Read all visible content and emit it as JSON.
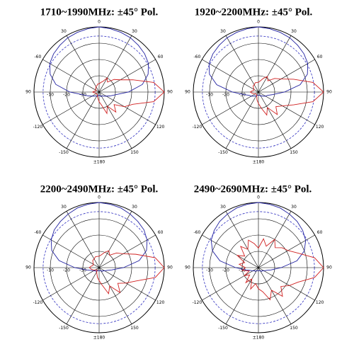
{
  "chart_data": [
    {
      "type": "polar",
      "title": "1710~1990MHz: ±45° Pol.",
      "x": [
        0,
        10,
        20,
        30,
        40,
        50,
        60,
        70,
        80,
        90,
        100,
        110,
        120,
        130,
        140,
        150,
        160,
        170,
        180,
        190,
        200,
        210,
        220,
        230,
        240,
        250,
        260,
        270,
        280,
        290,
        300,
        310,
        320,
        330,
        340,
        350
      ],
      "xticks": [
        0,
        {
          "value": 30,
          "label": "30"
        },
        60,
        90,
        120,
        150,
        {
          "value": 180,
          "label": "±180"
        },
        {
          "value": -150,
          "label": "-150"
        },
        {
          "value": -120,
          "label": "-120"
        },
        {
          "value": -90,
          "label": "90"
        },
        {
          "value": -60,
          "label": "-60"
        },
        {
          "value": -30,
          "label": "30"
        }
      ],
      "ylim": [
        -40,
        0
      ],
      "yticks": [
        -10,
        -20,
        -30
      ],
      "series": [
        {
          "color": "#2020a0",
          "values": [
            0,
            -0.5,
            -1,
            -1.5,
            -2.5,
            -3.5,
            -5,
            -8,
            -13,
            -22,
            -30,
            -33,
            -35,
            -36,
            -37,
            -37,
            -37,
            -38,
            -38,
            -38,
            -37,
            -37,
            -37,
            -36,
            -35,
            -33,
            -30,
            -22,
            -13,
            -8,
            -5,
            -3.5,
            -2.5,
            -1.5,
            -1,
            -0.5
          ]
        },
        {
          "color": "#d02020",
          "values": [
            -35,
            -34,
            -33,
            -30,
            -32,
            -28,
            -25,
            -18,
            -6,
            0,
            -6,
            -18,
            -22,
            -28,
            -24,
            -30,
            -26,
            -32,
            -34,
            -36,
            -37,
            -38,
            -38,
            -38,
            -38,
            -38,
            -37,
            -36,
            -37,
            -38,
            -38,
            -37,
            -37,
            -36,
            -36,
            -35
          ]
        }
      ]
    },
    {
      "type": "polar",
      "title": "1920~2200MHz: ±45° Pol.",
      "x": [
        0,
        10,
        20,
        30,
        40,
        50,
        60,
        70,
        80,
        90,
        100,
        110,
        120,
        130,
        140,
        150,
        160,
        170,
        180,
        190,
        200,
        210,
        220,
        230,
        240,
        250,
        260,
        270,
        280,
        290,
        300,
        310,
        320,
        330,
        340,
        350
      ],
      "xticks": [
        0,
        {
          "value": 30,
          "label": "30"
        },
        60,
        90,
        120,
        150,
        {
          "value": 180,
          "label": "±180"
        },
        {
          "value": -150,
          "label": "-150"
        },
        {
          "value": -120,
          "label": "-120"
        },
        {
          "value": -90,
          "label": "90"
        },
        {
          "value": -60,
          "label": "-60"
        },
        {
          "value": -30,
          "label": "30"
        }
      ],
      "ylim": [
        -40,
        0
      ],
      "yticks": [
        -10,
        -20,
        -30
      ],
      "series": [
        {
          "color": "#2020a0",
          "values": [
            0,
            -0.5,
            -1,
            -1.5,
            -2.5,
            -3.5,
            -5,
            -8,
            -14,
            -24,
            -31,
            -34,
            -35,
            -36,
            -37,
            -37,
            -38,
            -38,
            -38,
            -38,
            -38,
            -37,
            -37,
            -36,
            -35,
            -34,
            -31,
            -24,
            -14,
            -8,
            -5,
            -3.5,
            -2.5,
            -1.5,
            -1,
            -0.5
          ]
        },
        {
          "color": "#d02020",
          "values": [
            -34,
            -33,
            -31,
            -29,
            -31,
            -27,
            -24,
            -17,
            -6,
            0,
            -6,
            -17,
            -23,
            -26,
            -22,
            -29,
            -25,
            -30,
            -33,
            -35,
            -37,
            -38,
            -38,
            -38,
            -38,
            -37,
            -36,
            -35,
            -36,
            -37,
            -37,
            -36,
            -35,
            -35,
            -34,
            -34
          ]
        }
      ]
    },
    {
      "type": "polar",
      "title": "2200~2490MHz: ±45° Pol.",
      "x": [
        0,
        10,
        20,
        30,
        40,
        50,
        60,
        70,
        80,
        90,
        100,
        110,
        120,
        130,
        140,
        150,
        160,
        170,
        180,
        190,
        200,
        210,
        220,
        230,
        240,
        250,
        260,
        270,
        280,
        290,
        300,
        310,
        320,
        330,
        340,
        350
      ],
      "xticks": [
        0,
        {
          "value": 30,
          "label": "30"
        },
        60,
        90,
        120,
        150,
        {
          "value": 180,
          "label": "±180"
        },
        {
          "value": -150,
          "label": "-150"
        },
        {
          "value": -120,
          "label": "-120"
        },
        {
          "value": -90,
          "label": "90"
        },
        {
          "value": -60,
          "label": "-60"
        },
        {
          "value": -30,
          "label": "30"
        }
      ],
      "ylim": [
        -40,
        0
      ],
      "yticks": [
        -10,
        -20,
        -30
      ],
      "series": [
        {
          "color": "#2020a0",
          "values": [
            0,
            -0.5,
            -1,
            -2,
            -3,
            -4,
            -6,
            -9,
            -15,
            -25,
            -32,
            -35,
            -36,
            -37,
            -37,
            -38,
            -38,
            -38,
            -38,
            -38,
            -38,
            -38,
            -37,
            -37,
            -36,
            -35,
            -32,
            -25,
            -15,
            -9,
            -6,
            -4,
            -3,
            -2,
            -1,
            -0.5
          ]
        },
        {
          "color": "#d02020",
          "values": [
            -33,
            -32,
            -30,
            -28,
            -30,
            -26,
            -23,
            -16,
            -5,
            0,
            -5,
            -16,
            -21,
            -25,
            -20,
            -27,
            -23,
            -29,
            -32,
            -34,
            -36,
            -37,
            -38,
            -38,
            -37,
            -36,
            -35,
            -34,
            -35,
            -36,
            -36,
            -35,
            -34,
            -34,
            -33,
            -33
          ]
        }
      ]
    },
    {
      "type": "polar",
      "title": "2490~2690MHz: ±45° Pol.",
      "x": [
        0,
        10,
        20,
        30,
        40,
        50,
        60,
        70,
        80,
        90,
        100,
        110,
        120,
        130,
        140,
        150,
        160,
        170,
        180,
        190,
        200,
        210,
        220,
        230,
        240,
        250,
        260,
        270,
        280,
        290,
        300,
        310,
        320,
        330,
        340,
        350
      ],
      "xticks": [
        0,
        {
          "value": 30,
          "label": "30"
        },
        60,
        90,
        120,
        150,
        {
          "value": 180,
          "label": "±180"
        },
        {
          "value": -150,
          "label": "-150"
        },
        {
          "value": -120,
          "label": "-120"
        },
        {
          "value": -90,
          "label": "90"
        },
        {
          "value": -60,
          "label": "-60"
        },
        {
          "value": -30,
          "label": "30"
        }
      ],
      "ylim": [
        -40,
        0
      ],
      "yticks": [
        -10,
        -20,
        -30
      ],
      "series": [
        {
          "color": "#2020a0",
          "values": [
            0,
            -0.5,
            -1,
            -2,
            -3,
            -4.5,
            -6.5,
            -10,
            -16,
            -26,
            -32,
            -35,
            -36,
            -37,
            -37,
            -38,
            -38,
            -38,
            -38,
            -38,
            -38,
            -38,
            -37,
            -37,
            -36,
            -35,
            -32,
            -26,
            -16,
            -10,
            -6.5,
            -4.5,
            -3,
            -2,
            -1,
            -0.5
          ]
        },
        {
          "color": "#d02020",
          "values": [
            -28,
            -22,
            -26,
            -20,
            -24,
            -21,
            -19,
            -14,
            -5,
            0,
            -5,
            -14,
            -18,
            -22,
            -17,
            -24,
            -19,
            -25,
            -27,
            -30,
            -26,
            -32,
            -28,
            -33,
            -30,
            -34,
            -30,
            -32,
            -28,
            -31,
            -25,
            -29,
            -23,
            -27,
            -22,
            -25
          ]
        }
      ]
    }
  ]
}
